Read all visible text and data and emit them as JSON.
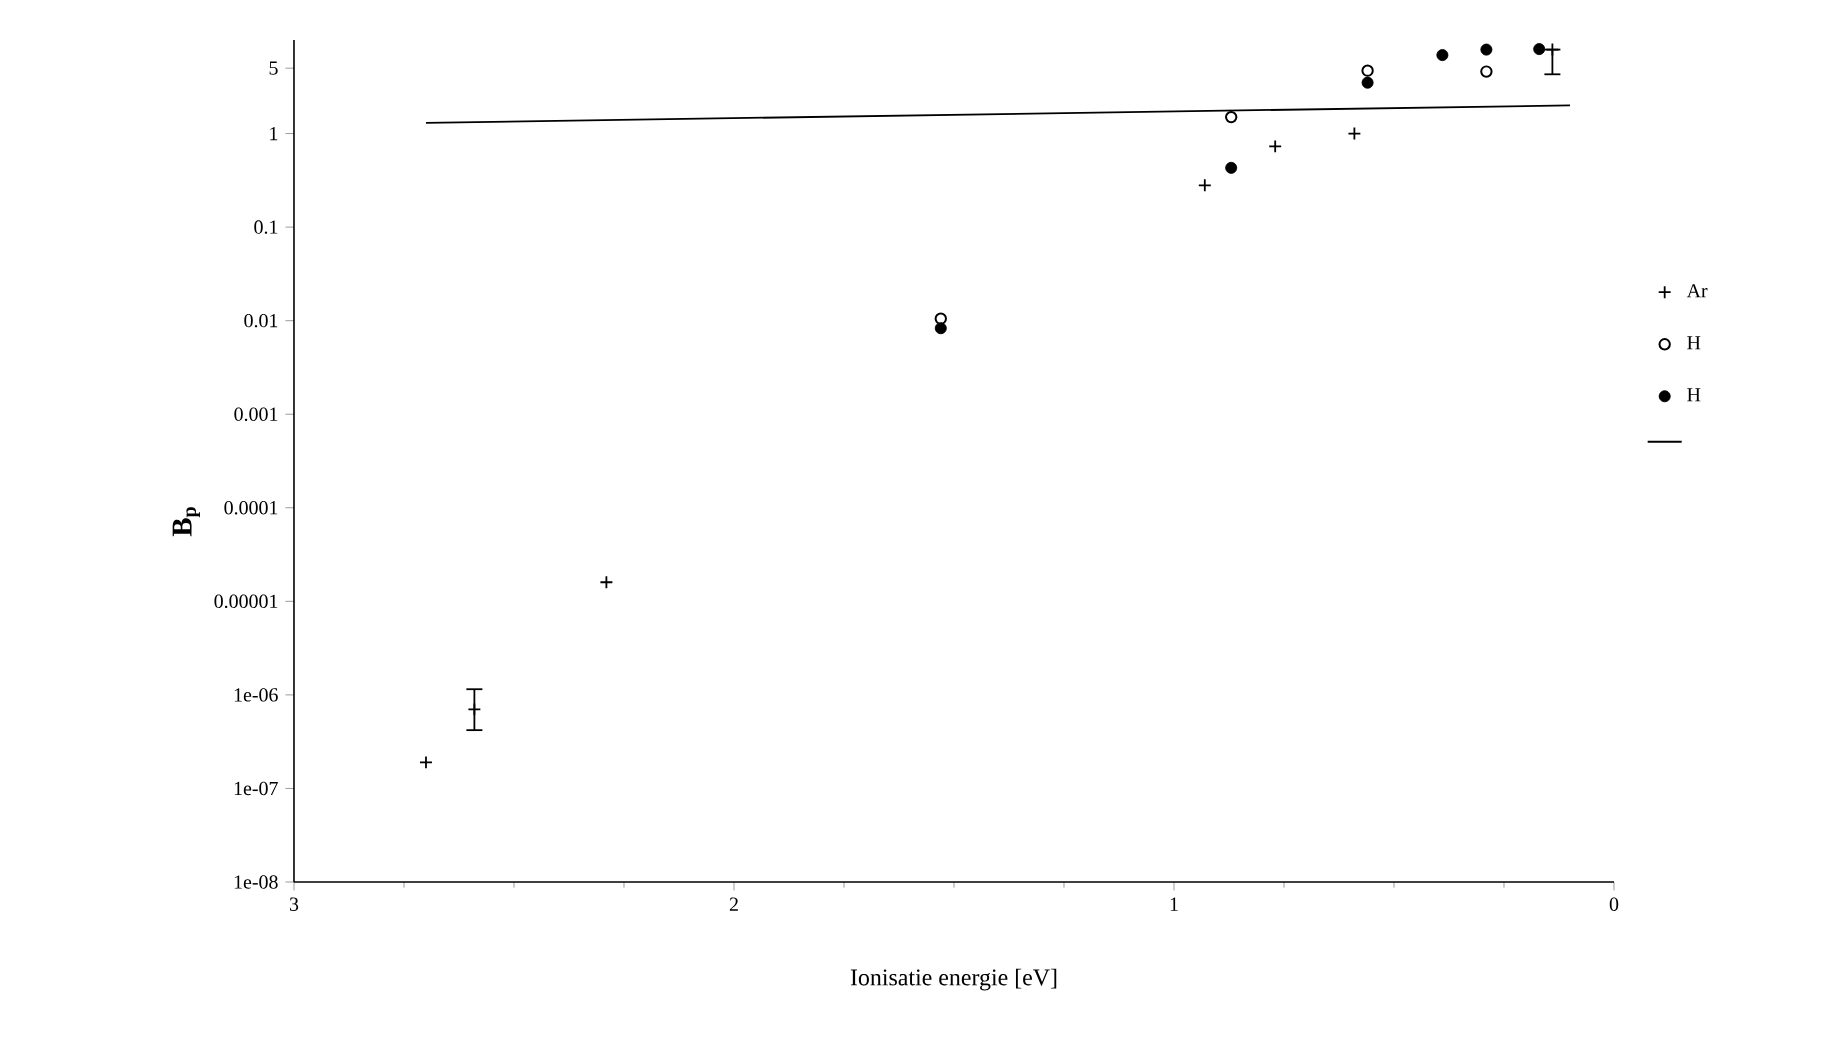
{
  "chart_data": {
    "type": "scatter",
    "xlabel": "Ionisatie energie [eV]",
    "ylabel": "B$_{p}$",
    "xlim": [
      3,
      0
    ],
    "xticks": [
      3,
      2,
      1,
      0
    ],
    "ylim": [
      1e-08,
      10
    ],
    "log": "y",
    "yticks": [
      {
        "value": 1e-08,
        "label": "1e-08"
      },
      {
        "value": 1e-07,
        "label": "1e-07"
      },
      {
        "value": 1e-06,
        "label": "1e-06"
      },
      {
        "value": 1e-05,
        "label": "0.00001"
      },
      0.0001,
      0.001,
      0.01,
      0.1,
      1,
      5
    ],
    "legend": "right",
    "grid": false,
    "series": [
      {
        "name": "Ar",
        "color": "#000000",
        "marker": "cross",
        "x": [
          2.7,
          2.59,
          2.29,
          0.93,
          0.77,
          0.59,
          0.14
        ],
        "values": [
          1.9e-07,
          7e-07,
          1.6e-05,
          0.28,
          0.73,
          1.0,
          7.9
        ],
        "errors": [
          null,
          [
            4.2e-07,
            1.15e-06
          ],
          null,
          null,
          null,
          null,
          [
            4.3,
            7.9
          ]
        ]
      },
      {
        "name": "H",
        "color": "#000000",
        "marker": "circle",
        "x": [
          1.53,
          0.87,
          0.56,
          0.29
        ],
        "values": [
          0.0105,
          1.5,
          4.7,
          4.6
        ]
      },
      {
        "name": "H",
        "color": "#000000",
        "marker": "circle",
        "x": [
          1.53,
          0.87,
          0.56,
          0.39,
          0.29,
          0.17
        ],
        "values": [
          0.0083,
          0.43,
          3.5,
          6.9,
          7.9,
          8.0
        ]
      },
      {
        "type": "line",
        "color": "#000000",
        "marker": "none",
        "line_style": "solid",
        "x": [
          2.7,
          0.1
        ],
        "values": [
          1.3,
          2.0
        ]
      }
    ]
  }
}
